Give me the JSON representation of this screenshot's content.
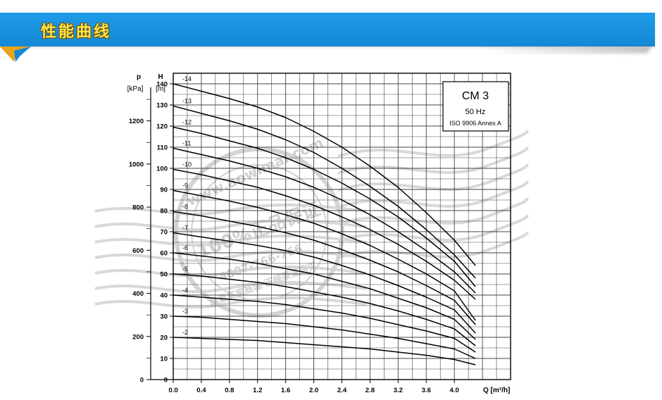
{
  "header": {
    "title": "性能曲线"
  },
  "colors": {
    "banner": "#1488d6",
    "title": "#ffe34d",
    "curve": "#000000",
    "grid": "#555555"
  },
  "watermark": {
    "url": "www.aowlmai.com",
    "slogan": "100%正品保证",
    "phone": "4007-766-766",
    "note": "奥莱买家商城 正规渠道购买"
  },
  "chart_data": {
    "type": "line",
    "legend_box": {
      "model": "CM 3",
      "frequency": "50 Hz",
      "standard": "ISO 9906 Annex A",
      "placement": "top-right"
    },
    "xlabel": "Q [m³/h]",
    "ylabel_left_p": "p",
    "ylabel_left_p_unit": "[kPa]",
    "ylabel_left_h": "H",
    "ylabel_left_h_unit": "[m]",
    "xlim": [
      0,
      4.8
    ],
    "ylim": [
      0,
      145
    ],
    "x_ticks": [
      "0.0",
      "0.4",
      "0.8",
      "1.2",
      "1.6",
      "2.0",
      "2.4",
      "2.8",
      "3.2",
      "3.6",
      "4.0"
    ],
    "h_ticks": [
      "0",
      "10",
      "20",
      "30",
      "40",
      "50",
      "60",
      "70",
      "80",
      "90",
      "100",
      "110",
      "120",
      "130",
      "140"
    ],
    "p_ticks": [
      "0",
      "200",
      "400",
      "600",
      "800",
      "1000",
      "1200"
    ],
    "grid": true,
    "series": [
      {
        "name": "-14",
        "x": [
          0,
          0.4,
          0.8,
          1.2,
          1.6,
          2.0,
          2.4,
          2.8,
          3.2,
          3.6,
          4.0,
          4.3
        ],
        "y": [
          140,
          136.5,
          133,
          129,
          124,
          117.5,
          110,
          101,
          91,
          79,
          66,
          54
        ]
      },
      {
        "name": "-13",
        "x": [
          0,
          0.4,
          0.8,
          1.2,
          1.6,
          2.0,
          2.4,
          2.8,
          3.2,
          3.6,
          4.0,
          4.3
        ],
        "y": [
          129.5,
          126,
          122.5,
          118.5,
          113.5,
          107.5,
          100,
          91.5,
          82,
          71,
          59,
          48
        ]
      },
      {
        "name": "-12",
        "x": [
          0,
          0.4,
          0.8,
          1.2,
          1.6,
          2.0,
          2.4,
          2.8,
          3.2,
          3.6,
          4.0,
          4.3
        ],
        "y": [
          119.5,
          116.5,
          113,
          109.5,
          105,
          99.5,
          93,
          85.5,
          77,
          67,
          56,
          44
        ]
      },
      {
        "name": "-11",
        "x": [
          0,
          0.4,
          0.8,
          1.2,
          1.6,
          2.0,
          2.4,
          2.8,
          3.2,
          3.6,
          4.0,
          4.3
        ],
        "y": [
          109.5,
          106.5,
          103.5,
          100,
          96,
          91,
          85,
          78,
          70,
          61,
          51,
          41
        ]
      },
      {
        "name": "-10",
        "x": [
          0,
          0.4,
          0.8,
          1.2,
          1.6,
          2.0,
          2.4,
          2.8,
          3.2,
          3.6,
          4.0,
          4.3
        ],
        "y": [
          99.5,
          97,
          94,
          91,
          87,
          82.5,
          77,
          71,
          64,
          56,
          47,
          38
        ]
      },
      {
        "name": "-9",
        "x": [
          0,
          0.4,
          0.8,
          1.2,
          1.6,
          2.0,
          2.4,
          2.8,
          3.2,
          3.6,
          4.0,
          4.3
        ],
        "y": [
          89.5,
          87,
          84.5,
          81.5,
          78,
          74,
          69,
          63.5,
          57,
          50,
          42,
          28
        ]
      },
      {
        "name": "-8",
        "x": [
          0,
          0.4,
          0.8,
          1.2,
          1.6,
          2.0,
          2.4,
          2.8,
          3.2,
          3.6,
          4.0,
          4.3
        ],
        "y": [
          79.5,
          77.5,
          75,
          72.5,
          69.5,
          66,
          61.5,
          56.5,
          51,
          44.5,
          37.5,
          26
        ]
      },
      {
        "name": "-7",
        "x": [
          0,
          0.4,
          0.8,
          1.2,
          1.6,
          2.0,
          2.4,
          2.8,
          3.2,
          3.6,
          4.0,
          4.3
        ],
        "y": [
          69.5,
          67.5,
          65.5,
          63.5,
          61,
          58,
          54,
          49.5,
          44.5,
          39,
          33,
          22
        ]
      },
      {
        "name": "-6",
        "x": [
          0,
          0.4,
          0.8,
          1.2,
          1.6,
          2.0,
          2.4,
          2.8,
          3.2,
          3.6,
          4.0,
          4.3
        ],
        "y": [
          60,
          58.5,
          57,
          55,
          52.5,
          50,
          46.5,
          43,
          38.5,
          34,
          28.5,
          19
        ]
      },
      {
        "name": "-5",
        "x": [
          0,
          0.4,
          0.8,
          1.2,
          1.6,
          2.0,
          2.4,
          2.8,
          3.2,
          3.6,
          4.0,
          4.3
        ],
        "y": [
          50,
          49,
          47.5,
          46,
          44,
          41.5,
          39,
          36,
          32.5,
          28.5,
          24,
          16
        ]
      },
      {
        "name": "-4",
        "x": [
          0,
          0.4,
          0.8,
          1.2,
          1.6,
          2.0,
          2.4,
          2.8,
          3.2,
          3.6,
          4.0,
          4.3
        ],
        "y": [
          40,
          39,
          38,
          37,
          35.5,
          33.5,
          31.5,
          29,
          26,
          23,
          19.5,
          13
        ]
      },
      {
        "name": "-3",
        "x": [
          0,
          0.4,
          0.8,
          1.2,
          1.6,
          2.0,
          2.4,
          2.8,
          3.2,
          3.6,
          4.0,
          4.3
        ],
        "y": [
          30,
          29.5,
          28.5,
          27.5,
          26.5,
          25,
          23.5,
          21.5,
          19.5,
          17,
          14.5,
          10
        ]
      },
      {
        "name": "-2",
        "x": [
          0,
          0.4,
          0.8,
          1.2,
          1.6,
          2.0,
          2.4,
          2.8,
          3.2,
          3.6,
          4.0,
          4.3
        ],
        "y": [
          20,
          19.5,
          19,
          18.5,
          17.5,
          16.5,
          15.5,
          14.5,
          13,
          11.5,
          9.5,
          7
        ]
      }
    ]
  }
}
